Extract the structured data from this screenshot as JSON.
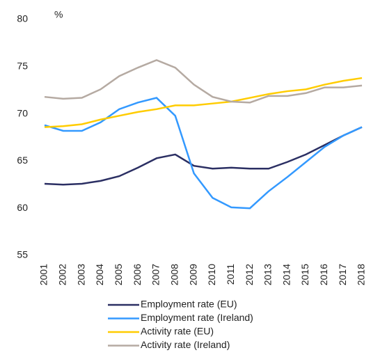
{
  "chart_data": {
    "type": "line",
    "y_label": "%",
    "categories": [
      "2001",
      "2002",
      "2003",
      "2004",
      "2005",
      "2006",
      "2007",
      "2008",
      "2009",
      "2010",
      "2011",
      "2012",
      "2013",
      "2014",
      "2015",
      "2016",
      "2017",
      "2018"
    ],
    "series": [
      {
        "name": "Employment rate (EU)",
        "color": "#2b2f63",
        "values": [
          62.6,
          62.5,
          62.6,
          62.9,
          63.4,
          64.3,
          65.3,
          65.7,
          64.5,
          64.2,
          64.3,
          64.2,
          64.2,
          64.9,
          65.7,
          66.7,
          67.7,
          68.6
        ]
      },
      {
        "name": "Employment rate (Ireland)",
        "color": "#3399ff",
        "values": [
          68.8,
          68.2,
          68.2,
          69.1,
          70.5,
          71.2,
          71.7,
          69.8,
          63.7,
          61.1,
          60.1,
          60.0,
          61.8,
          63.3,
          64.9,
          66.5,
          67.7,
          68.6
        ]
      },
      {
        "name": "Activity rate (EU)",
        "color": "#ffcc00",
        "values": [
          68.6,
          68.7,
          68.9,
          69.4,
          69.8,
          70.2,
          70.5,
          70.9,
          70.9,
          71.1,
          71.3,
          71.7,
          72.1,
          72.4,
          72.6,
          73.1,
          73.5,
          73.8
        ]
      },
      {
        "name": "Activity rate (Ireland)",
        "color": "#b5aaa2",
        "values": [
          71.8,
          71.6,
          71.7,
          72.6,
          74.0,
          74.9,
          75.7,
          74.9,
          73.1,
          71.8,
          71.3,
          71.2,
          71.9,
          71.9,
          72.2,
          72.8,
          72.8,
          73.0
        ]
      }
    ],
    "ylim": [
      55,
      80
    ],
    "yticks": [
      55,
      60,
      65,
      70,
      75,
      80
    ],
    "grid": false
  }
}
